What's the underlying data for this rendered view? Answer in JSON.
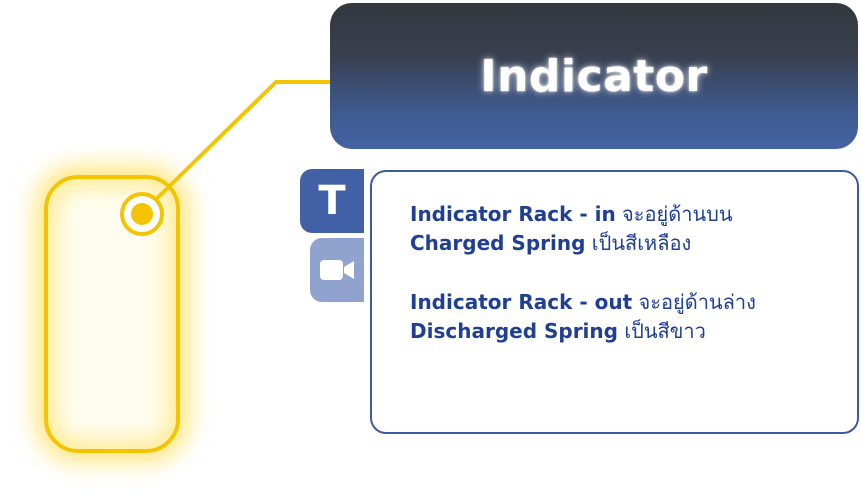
{
  "title": "Indicator",
  "tabs": {
    "text_tab_label": "T",
    "video_tab_icon": "video-camera-icon"
  },
  "content": {
    "para1": {
      "line1_bold": "Indicator Rack - in",
      "line1_text": " จะอยู่ด้านบน",
      "line2_bold": "Charged Spring",
      "line2_text": " เป็นสีเหลือง"
    },
    "para2": {
      "line1_bold": "Indicator Rack - out",
      "line1_text": " จะอยู่ด้านล่าง",
      "line2_bold": "Discharged Spring",
      "line2_text": " เป็นสีขาว"
    }
  },
  "colors": {
    "highlight": "#f5c400",
    "banner_dark": "#33373d",
    "banner_blue": "#4563a3",
    "panel_border": "#3f5aa0",
    "text_blue": "#1f3f93",
    "tab_video": "#8fa3ce"
  }
}
